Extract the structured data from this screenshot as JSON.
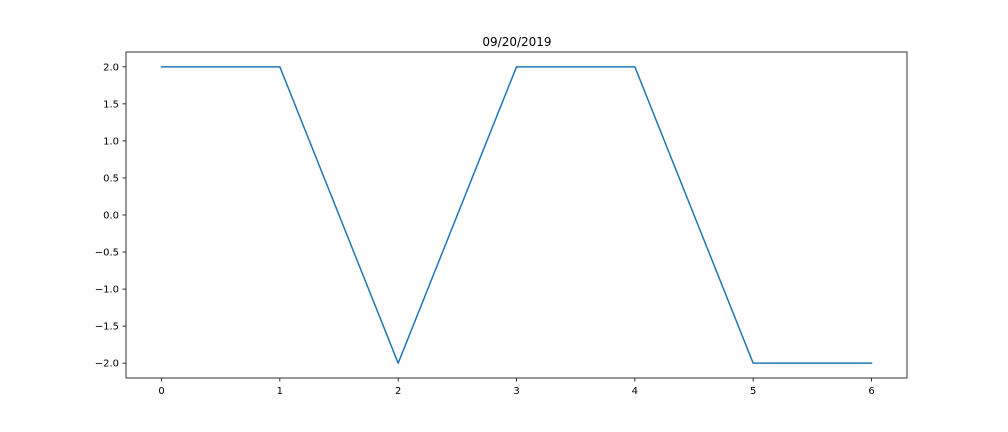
{
  "chart_data": {
    "type": "line",
    "title": "09/20/2019",
    "xlabel": "",
    "ylabel": "",
    "xlim": [
      -0.3,
      6.3
    ],
    "ylim": [
      -2.2,
      2.2
    ],
    "x_ticks": [
      0,
      1,
      2,
      3,
      4,
      5,
      6
    ],
    "x_tick_labels": [
      "0",
      "1",
      "2",
      "3",
      "4",
      "5",
      "6"
    ],
    "y_ticks": [
      2.0,
      1.5,
      1.0,
      0.5,
      0.0,
      -0.5,
      -1.0,
      -1.5,
      -2.0
    ],
    "y_tick_labels": [
      "2.0",
      "1.5",
      "1.0",
      "0.5",
      "0.0",
      "−0.5",
      "−1.0",
      "−1.5",
      "−2.0"
    ],
    "grid": false,
    "legend": "none",
    "series": [
      {
        "color": "#1f77b4",
        "x": [
          0,
          1,
          2,
          3,
          4,
          5,
          6
        ],
        "y": [
          2,
          2,
          -2,
          2,
          2,
          -2,
          -2
        ]
      }
    ]
  }
}
